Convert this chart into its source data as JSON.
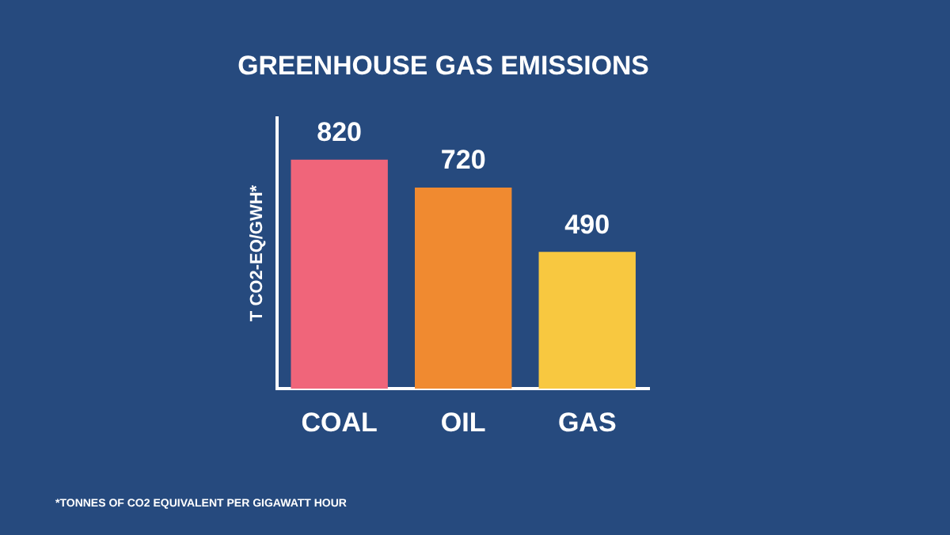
{
  "chart_data": {
    "type": "bar",
    "title": "GREENHOUSE GAS EMISSIONS",
    "ylabel": "T CO2-EQ/GWH*",
    "categories": [
      "COAL",
      "OIL",
      "GAS"
    ],
    "values": [
      820,
      720,
      490
    ],
    "colors": [
      "#f0657a",
      "#f08a30",
      "#f8c840"
    ],
    "ylim": [
      0,
      970
    ],
    "tick_labels": "x",
    "data_labels": true,
    "grid": false,
    "legend": false,
    "annotations": [
      "*TONNES OF CO2 EQUIVALENT PER GIGAWATT HOUR"
    ]
  }
}
